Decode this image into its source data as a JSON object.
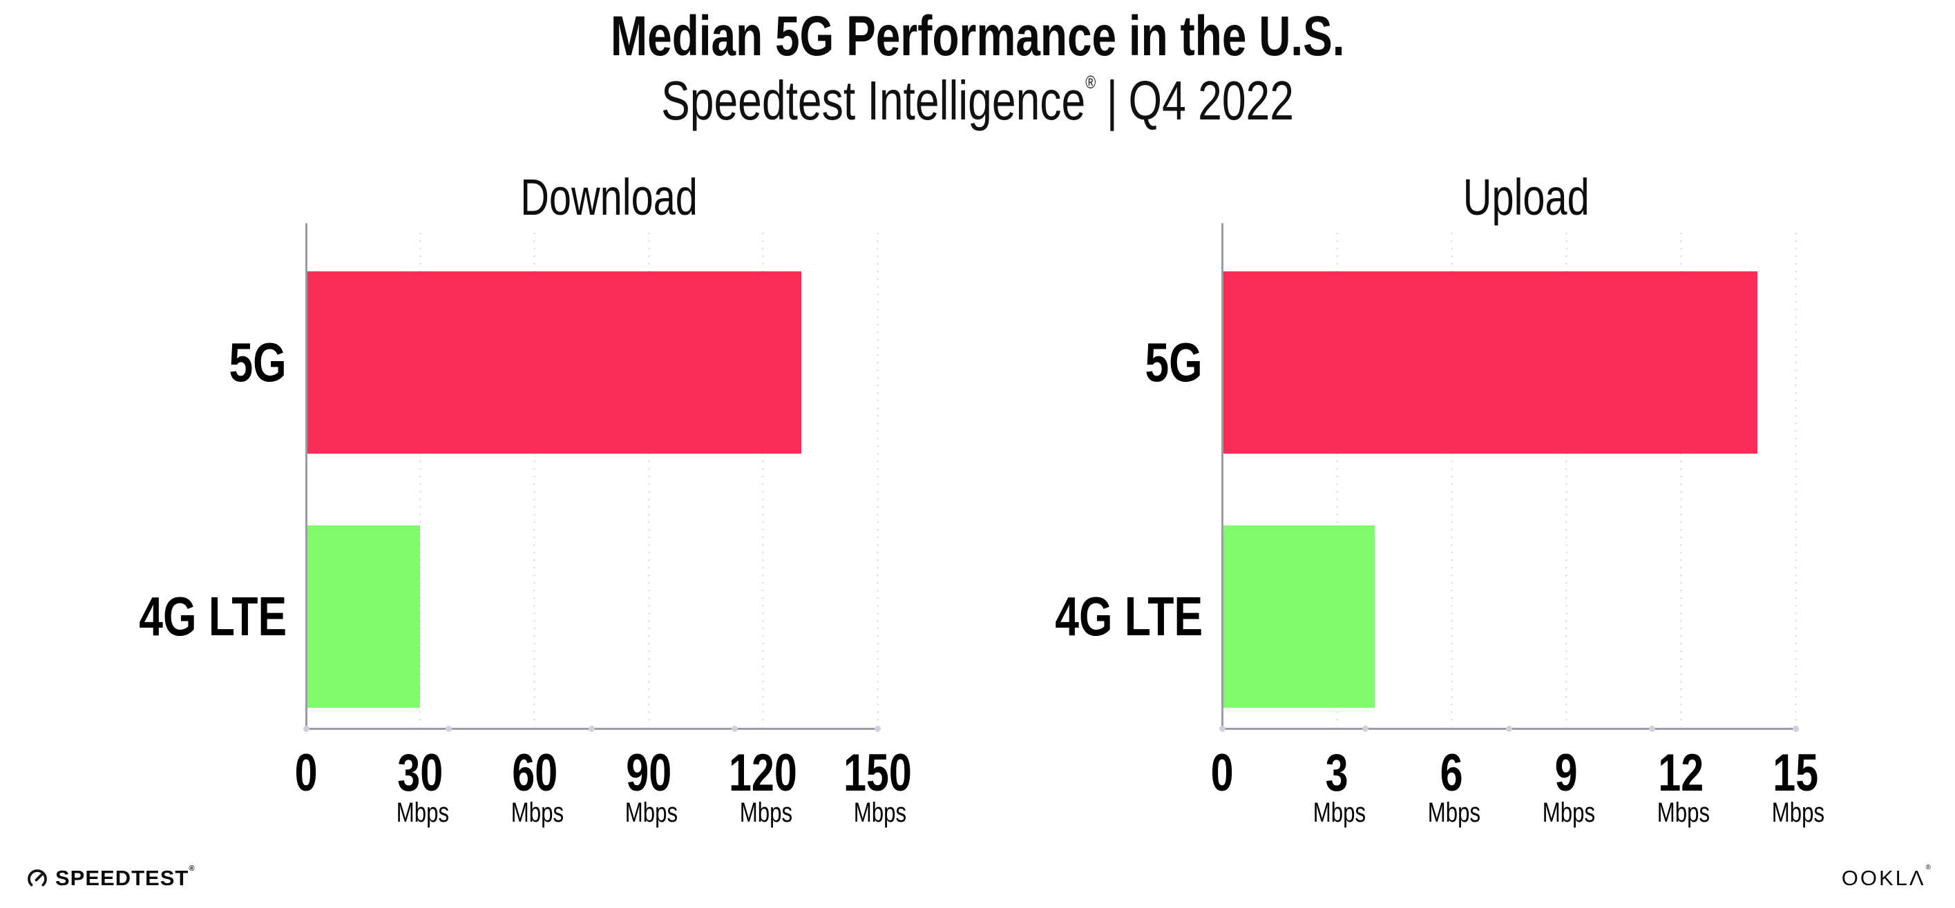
{
  "header": {
    "title": "Median 5G Performance in the U.S.",
    "subtitle_brand": "Speedtest Intelligence",
    "subtitle_reg": "®",
    "subtitle_sep": "|",
    "subtitle_period": "Q4 2022"
  },
  "chart_data": [
    {
      "type": "bar",
      "orientation": "horizontal",
      "title": "Download",
      "categories": [
        "5G",
        "4G LTE"
      ],
      "values": [
        130,
        30
      ],
      "unit": "Mbps",
      "xlim": [
        0,
        150
      ],
      "xticks": [
        0,
        30,
        60,
        90,
        120,
        150
      ],
      "grid": "vertical-dotted",
      "legend": "none",
      "bar_colors": [
        "#fb2c55",
        "#81fb6d"
      ]
    },
    {
      "type": "bar",
      "orientation": "horizontal",
      "title": "Upload",
      "categories": [
        "5G",
        "4G LTE"
      ],
      "values": [
        14,
        4
      ],
      "unit": "Mbps",
      "xlim": [
        0,
        15
      ],
      "xticks": [
        0,
        3,
        6,
        9,
        12,
        15
      ],
      "grid": "vertical-dotted",
      "legend": "none",
      "bar_colors": [
        "#fb2c55",
        "#81fb6d"
      ]
    }
  ],
  "footer": {
    "speedtest_logo_text": "SPEEDTEST",
    "speedtest_reg": "®",
    "ookla_logo_text": "OOKLΛ",
    "ookla_reg": "®"
  },
  "colors": {
    "bar_5g": "#fb2c55",
    "bar_4g_lte": "#81fb6d",
    "gridline": "#e4e4ef",
    "axis": "#9b9ba3",
    "axis_dot": "#cfcfde",
    "text": "#0a0a0a",
    "background": "#ffffff"
  }
}
